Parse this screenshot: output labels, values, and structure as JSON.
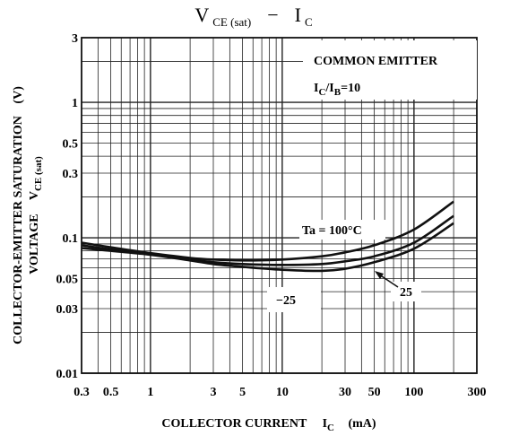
{
  "chart_data": {
    "type": "line",
    "title": {
      "main": "V",
      "sub": "CE (sat)",
      "dash": "−",
      "ic_main": "I",
      "ic_sub": "C"
    },
    "xlabel": {
      "main": "COLLECTOR CURRENT",
      "sym": "I",
      "sub": "C",
      "unit": "(mA)"
    },
    "ylabel": {
      "line1": "COLLECTOR-EMITTER SATURATION",
      "line2_a": "VOLTAGE",
      "line2_sym": "V",
      "line2_sub": "CE (sat)",
      "line1_unit": "(V)"
    },
    "x_scale": "log",
    "y_scale": "log",
    "xlim": [
      0.3,
      300
    ],
    "ylim": [
      0.01,
      3
    ],
    "x_ticks": [
      {
        "v": 0.3,
        "label": "0.3"
      },
      {
        "v": 0.5,
        "label": "0.5"
      },
      {
        "v": 1,
        "label": "1"
      },
      {
        "v": 3,
        "label": "3"
      },
      {
        "v": 5,
        "label": "5"
      },
      {
        "v": 10,
        "label": "10"
      },
      {
        "v": 30,
        "label": "30"
      },
      {
        "v": 50,
        "label": "50"
      },
      {
        "v": 100,
        "label": "100"
      },
      {
        "v": 300,
        "label": "300"
      }
    ],
    "y_ticks": [
      {
        "v": 0.01,
        "label": "0.01"
      },
      {
        "v": 0.03,
        "label": "0.03"
      },
      {
        "v": 0.05,
        "label": "0.05"
      },
      {
        "v": 0.1,
        "label": "0.1"
      },
      {
        "v": 0.3,
        "label": "0.3"
      },
      {
        "v": 0.5,
        "label": "0.5"
      },
      {
        "v": 1,
        "label": "1"
      },
      {
        "v": 3,
        "label": "3"
      }
    ],
    "grid": true,
    "annotation_box": {
      "line1": "COMMON EMITTER",
      "line2_a": "I",
      "line2_a_sub": "C",
      "line2_b": "/I",
      "line2_b_sub": "B",
      "line2_c": "=10"
    },
    "series": [
      {
        "name": "Ta=100°C",
        "points": [
          [
            0.3,
            0.092
          ],
          [
            0.5,
            0.085
          ],
          [
            1,
            0.077
          ],
          [
            2,
            0.071
          ],
          [
            3,
            0.069
          ],
          [
            5,
            0.068
          ],
          [
            10,
            0.069
          ],
          [
            20,
            0.073
          ],
          [
            30,
            0.078
          ],
          [
            50,
            0.088
          ],
          [
            100,
            0.115
          ],
          [
            200,
            0.185
          ]
        ]
      },
      {
        "name": "25",
        "points": [
          [
            0.3,
            0.088
          ],
          [
            0.5,
            0.082
          ],
          [
            1,
            0.076
          ],
          [
            2,
            0.069
          ],
          [
            3,
            0.066
          ],
          [
            5,
            0.064
          ],
          [
            10,
            0.063
          ],
          [
            20,
            0.064
          ],
          [
            30,
            0.067
          ],
          [
            50,
            0.073
          ],
          [
            100,
            0.092
          ],
          [
            200,
            0.145
          ]
        ]
      },
      {
        "name": "−25",
        "points": [
          [
            0.3,
            0.084
          ],
          [
            0.5,
            0.08
          ],
          [
            1,
            0.075
          ],
          [
            2,
            0.068
          ],
          [
            3,
            0.064
          ],
          [
            5,
            0.061
          ],
          [
            10,
            0.058
          ],
          [
            20,
            0.057
          ],
          [
            30,
            0.059
          ],
          [
            50,
            0.066
          ],
          [
            100,
            0.083
          ],
          [
            200,
            0.128
          ]
        ]
      }
    ],
    "labels": {
      "ta": "Ta = 100°C",
      "l25": "25",
      "lm25": "−25"
    }
  }
}
